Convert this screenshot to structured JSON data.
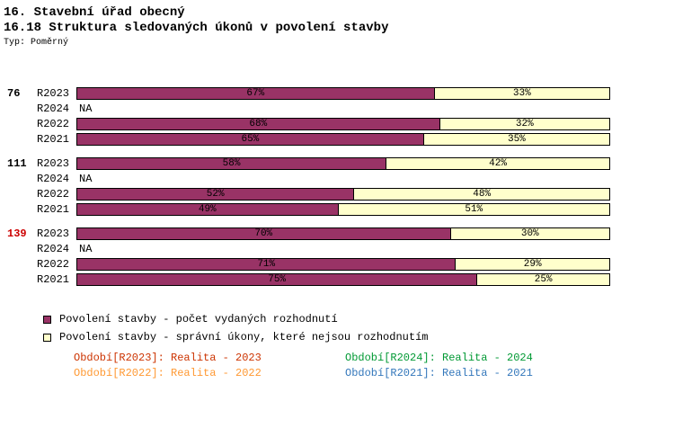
{
  "chart_data": {
    "type": "bar",
    "orientation": "horizontal",
    "stacked": true,
    "title": "16. Stavební úřad obecný",
    "subtitle": "16.18 Struktura sledovaných úkonů v povolení stavby",
    "type_label": "Typ: Poměrný",
    "unit": "%",
    "na_text": "NA",
    "axis_range": [
      0,
      100
    ],
    "grid": false,
    "legend_position": "bottom-left",
    "series": [
      {
        "name": "Povolení stavby - počet vydaných rozhodnutí",
        "color": "#993366"
      },
      {
        "name": "Povolení stavby - správní úkony, které nejsou rozhodnutím",
        "color": "#FFFFCC"
      }
    ],
    "groups": [
      {
        "label": "76",
        "label_color": "#000000",
        "rows": [
          {
            "period": "R2023",
            "na": false,
            "values": [
              67,
              33
            ]
          },
          {
            "period": "R2024",
            "na": true,
            "values": []
          },
          {
            "period": "R2022",
            "na": false,
            "values": [
              68,
              32
            ]
          },
          {
            "period": "R2021",
            "na": false,
            "values": [
              65,
              35
            ]
          }
        ]
      },
      {
        "label": "111",
        "label_color": "#000000",
        "rows": [
          {
            "period": "R2023",
            "na": false,
            "values": [
              58,
              42
            ]
          },
          {
            "period": "R2024",
            "na": true,
            "values": []
          },
          {
            "period": "R2022",
            "na": false,
            "values": [
              52,
              48
            ]
          },
          {
            "period": "R2021",
            "na": false,
            "values": [
              49,
              51
            ]
          }
        ]
      },
      {
        "label": "139",
        "label_color": "#CC0000",
        "rows": [
          {
            "period": "R2023",
            "na": false,
            "values": [
              70,
              30
            ]
          },
          {
            "period": "R2024",
            "na": true,
            "values": []
          },
          {
            "period": "R2022",
            "na": false,
            "values": [
              71,
              29
            ]
          },
          {
            "period": "R2021",
            "na": false,
            "values": [
              75,
              25
            ]
          }
        ]
      }
    ]
  },
  "footnotes": [
    {
      "text": "Období[R2023]: Realita - 2023",
      "color": "#CC3300"
    },
    {
      "text": "Období[R2024]: Realita - 2024",
      "color": "#009933"
    },
    {
      "text": "Období[R2022]: Realita - 2022",
      "color": "#FF9933"
    },
    {
      "text": "Období[R2021]: Realita - 2021",
      "color": "#3377BB"
    }
  ]
}
